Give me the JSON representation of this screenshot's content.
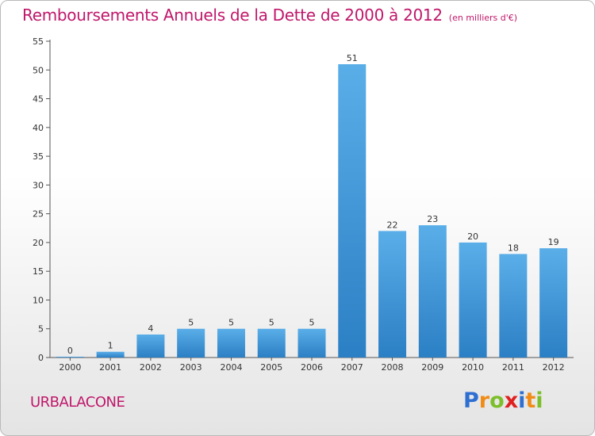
{
  "header": {
    "title": "Remboursements Annuels de la Dette de 2000 à 2012",
    "unit": "(en milliers d'€)"
  },
  "footer": {
    "commune": "URBALACONE",
    "logo_letters": [
      {
        "ch": "P",
        "color": "#2e6fd1"
      },
      {
        "ch": "r",
        "color": "#f08c16"
      },
      {
        "ch": "o",
        "color": "#7cbf2a"
      },
      {
        "ch": "x",
        "color": "#e02020"
      },
      {
        "ch": "i",
        "color": "#2e6fd1"
      },
      {
        "ch": "t",
        "color": "#f08c16"
      },
      {
        "ch": "i",
        "color": "#7cbf2a"
      }
    ]
  },
  "chart_data": {
    "type": "bar",
    "categories": [
      "2000",
      "2001",
      "2002",
      "2003",
      "2004",
      "2005",
      "2006",
      "2007",
      "2008",
      "2009",
      "2010",
      "2011",
      "2012"
    ],
    "values": [
      0,
      1,
      4,
      5,
      5,
      5,
      5,
      51,
      22,
      23,
      20,
      18,
      19
    ],
    "data_labels": [
      "0",
      "1",
      "4",
      "5",
      "5",
      "5",
      "5",
      "51",
      "22",
      "23",
      "20",
      "18",
      "19"
    ],
    "ylim": [
      0,
      55
    ],
    "yticks": [
      0,
      5,
      10,
      15,
      20,
      25,
      30,
      35,
      40,
      45,
      50,
      55
    ],
    "xlabel": "",
    "ylabel": "",
    "grid": false,
    "legend": "none",
    "colors": {
      "bar_light": "#5aaee8",
      "bar_dark": "#2b7fc4",
      "axis": "#555555"
    }
  }
}
